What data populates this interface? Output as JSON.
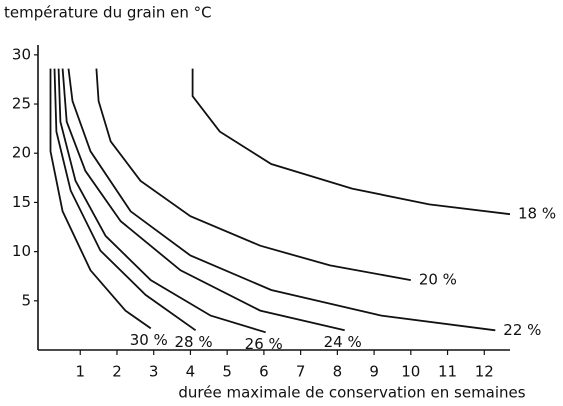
{
  "chart_data": {
    "type": "line",
    "title": "température du grain en °C",
    "x_label": "durée maximale de conservation en semaines",
    "xlim": [
      -0.15,
      12.7
    ],
    "ylim": [
      0,
      31
    ],
    "xticks": [
      1,
      2,
      3,
      4,
      5,
      6,
      7,
      8,
      9,
      10,
      11,
      12
    ],
    "yticks": [
      5,
      10,
      15,
      20,
      25,
      30
    ],
    "color": "#111111",
    "series": [
      {
        "name": "18 %",
        "x": [
          4.06,
          4.06,
          4.8,
          6.2,
          8.4,
          10.5,
          12.7
        ],
        "values": [
          28.6,
          25.8,
          22.2,
          18.9,
          16.4,
          14.8,
          13.8
        ]
      },
      {
        "name": "20 %",
        "x": [
          1.44,
          1.5,
          1.83,
          2.64,
          4.0,
          5.9,
          7.8,
          10.0
        ],
        "values": [
          28.6,
          25.3,
          21.2,
          17.2,
          13.6,
          10.6,
          8.6,
          7.1
        ]
      },
      {
        "name": "22 %",
        "x": [
          0.68,
          0.79,
          1.28,
          2.37,
          4.0,
          6.2,
          9.2,
          12.3
        ],
        "values": [
          28.6,
          25.3,
          20.2,
          14.1,
          9.6,
          6.1,
          3.5,
          2.0
        ]
      },
      {
        "name": "24 %",
        "x": [
          0.52,
          0.63,
          1.14,
          2.1,
          3.73,
          5.9,
          8.2
        ],
        "values": [
          28.6,
          23.2,
          18.2,
          13.1,
          8.1,
          4.0,
          2.0
        ]
      },
      {
        "name": "26 %",
        "x": [
          0.41,
          0.46,
          0.87,
          1.69,
          2.92,
          4.55,
          6.05
        ],
        "values": [
          28.6,
          23.2,
          17.2,
          11.6,
          7.1,
          3.5,
          1.8
        ]
      },
      {
        "name": "28 %",
        "x": [
          0.3,
          0.35,
          0.74,
          1.55,
          2.78,
          4.14
        ],
        "values": [
          28.6,
          22.2,
          16.2,
          10.1,
          5.6,
          2.0
        ]
      },
      {
        "name": "30 %",
        "x": [
          0.19,
          0.19,
          0.52,
          1.28,
          2.23,
          2.92
        ],
        "values": [
          28.6,
          20.2,
          14.1,
          8.1,
          4.0,
          2.2
        ]
      }
    ]
  }
}
